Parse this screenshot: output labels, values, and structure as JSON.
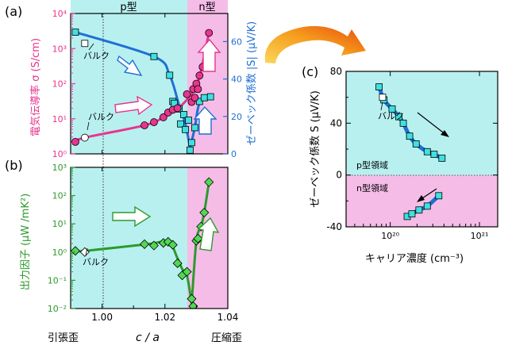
{
  "colors": {
    "p_region": "#b8f0f0",
    "n_region": "#f6bce8",
    "sigma": "#e8358f",
    "seebeck": "#1f6fd6",
    "seebeck_fill": "#3ee0e0",
    "pf": "#2d9a2d",
    "pf_fill": "#52d852",
    "arrow_orange": "#f08a10"
  },
  "panel_labels": {
    "a": "(a)",
    "b": "(b)",
    "c": "(c)"
  },
  "region_labels": {
    "p": "p型",
    "n": "n型"
  },
  "bulk_label": "バルク",
  "bottom_labels": {
    "tensile": "引張歪",
    "x_axis": "c / a",
    "compressive": "圧縮歪"
  },
  "chart_data": [
    {
      "id": "a",
      "type": "scatter",
      "title": "",
      "xlabel": "c / a",
      "ylabel_left": "電気伝導率 σ (S/cm)",
      "ylabel_right": "ゼーベック係数 |S| (μV/K)",
      "xlim": [
        0.99,
        1.04
      ],
      "ylim_left": [
        1,
        10000
      ],
      "ylim_right": [
        0,
        75
      ],
      "x_ticks": [
        "1.00",
        "1.02",
        "1.04"
      ],
      "y_left_ticks": [
        "10⁰",
        "10¹",
        "10²",
        "10³",
        "10⁴"
      ],
      "y_right_ticks": [
        "0",
        "20",
        "40",
        "60"
      ],
      "p_region_range": [
        0.99,
        1.0285
      ],
      "n_region_range": [
        1.0285,
        1.04
      ],
      "series": [
        {
          "name": "σ",
          "axis": "left",
          "x": [
            0.9915,
            1.0135,
            1.0165,
            1.0195,
            1.021,
            1.0225,
            1.024,
            1.027,
            1.0285,
            1.029,
            1.0295,
            1.03,
            1.0305,
            1.031,
            1.032,
            1.034
          ],
          "values": [
            2.2,
            6.5,
            8.0,
            11.0,
            15.0,
            18.0,
            20.0,
            50.0,
            30.0,
            70.0,
            40.0,
            100.0,
            70.0,
            170.0,
            300.0,
            2800.0
          ]
        },
        {
          "name": "σ バルク",
          "axis": "left",
          "x": [
            0.9945
          ],
          "values": [
            2.9
          ]
        },
        {
          "name": "|S|",
          "axis": "right",
          "x": [
            0.9915,
            1.0165,
            1.0215,
            1.0225,
            1.023,
            1.0245,
            1.025,
            1.026,
            1.0265,
            1.0275,
            1.028,
            1.0285,
            1.0295,
            1.031,
            1.0325,
            1.0345
          ],
          "values": [
            65.0,
            52.0,
            42.0,
            28.0,
            27.0,
            24.0,
            16.0,
            21.0,
            13.0,
            18.0,
            2.0,
            6.0,
            14.0,
            28.0,
            30.0,
            30.5
          ]
        },
        {
          "name": "|S| バルク",
          "axis": "right",
          "x": [
            0.9945
          ],
          "values": [
            59.0
          ]
        }
      ]
    },
    {
      "id": "b",
      "type": "scatter",
      "title": "",
      "xlabel": "c / a",
      "ylabel": "出力因子 (μW /mK²)",
      "xlim": [
        0.99,
        1.04
      ],
      "ylim": [
        0.01,
        1000
      ],
      "x_ticks": [
        "1.00",
        "1.02",
        "1.04"
      ],
      "y_ticks": [
        "10⁻²",
        "10⁻¹",
        "10⁰",
        "10¹",
        "10²",
        "10³"
      ],
      "series": [
        {
          "name": "PF",
          "x": [
            0.9915,
            1.0135,
            1.0165,
            1.0195,
            1.021,
            1.0225,
            1.024,
            1.0255,
            1.027,
            1.0285,
            1.029,
            1.03,
            1.0305,
            1.0315,
            1.0325,
            1.034
          ],
          "values": [
            1.1,
            1.9,
            1.7,
            2.1,
            2.3,
            1.8,
            0.4,
            0.15,
            0.2,
            0.022,
            0.012,
            2.5,
            3.0,
            8.0,
            25.0,
            300.0
          ]
        },
        {
          "name": "PF バルク",
          "x": [
            0.9945
          ],
          "values": [
            1.0
          ]
        }
      ]
    },
    {
      "id": "c",
      "type": "scatter",
      "title": "",
      "xlabel": "キャリア濃度 (cm⁻³)",
      "ylabel": "ゼーベック係数 S (μV/K)",
      "xscale": "log",
      "xlim": [
        3.2e+19,
        1.6e+21
      ],
      "ylim": [
        -40,
        80
      ],
      "x_ticks": [
        "10²⁰",
        "10²¹"
      ],
      "y_ticks": [
        "-40",
        "0",
        "40",
        "80"
      ],
      "region_labels": [
        "p型領域",
        "n型領域"
      ],
      "series": [
        {
          "name": "p型",
          "x": [
            7.5e+19,
            8.5e+19,
            1.05e+20,
            1.25e+20,
            1.4e+20,
            1.65e+20,
            1.95e+20,
            2.6e+20,
            3.1e+20,
            3.8e+20
          ],
          "values": [
            68,
            58,
            51,
            45,
            40,
            30,
            24,
            18,
            16,
            13
          ]
        },
        {
          "name": "p型 バルク",
          "x": [
            8.2e+19
          ],
          "values": [
            60
          ]
        },
        {
          "name": "n型",
          "x": [
            1.55e+20,
            1.75e+20,
            2.1e+20,
            2.6e+20,
            3.5e+20
          ],
          "values": [
            -32,
            -30,
            -27,
            -24,
            -16
          ]
        }
      ]
    }
  ]
}
